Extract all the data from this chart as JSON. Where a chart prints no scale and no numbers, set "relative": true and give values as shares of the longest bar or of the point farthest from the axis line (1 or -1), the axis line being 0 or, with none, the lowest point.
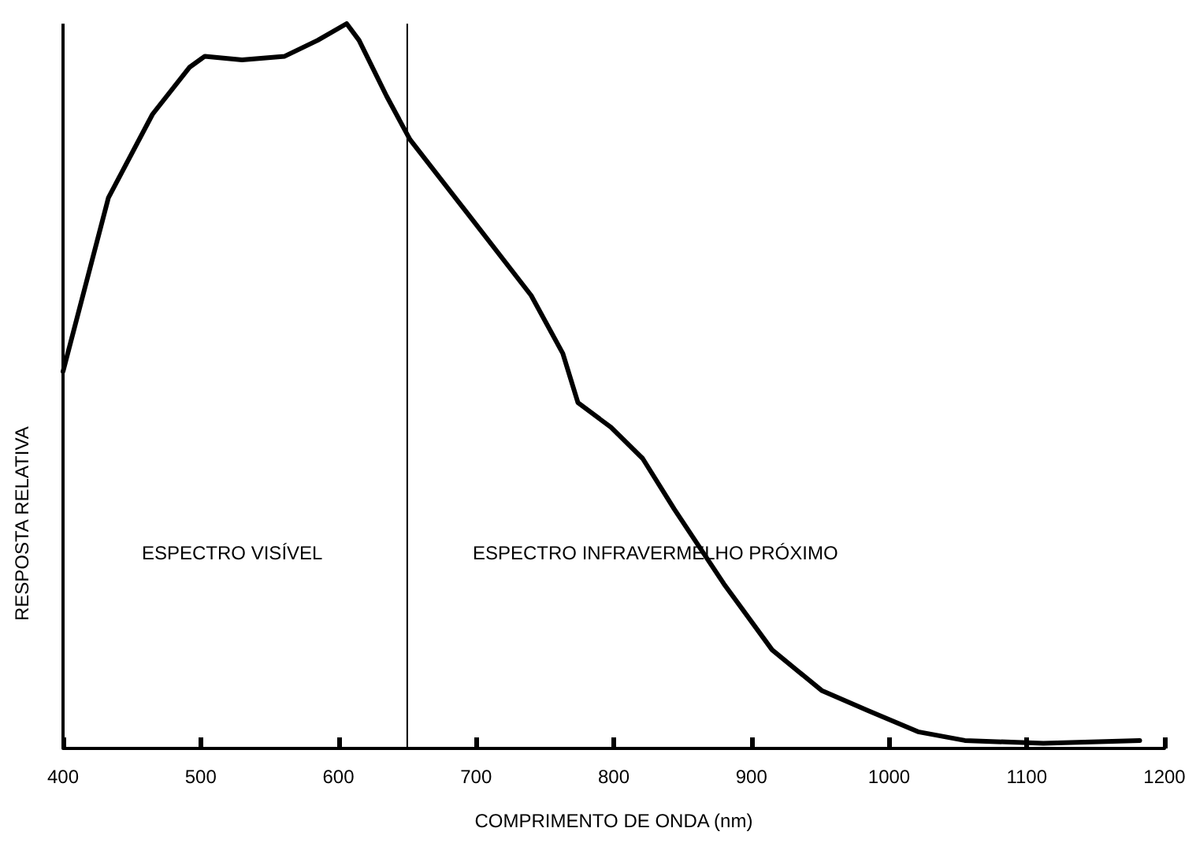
{
  "chart_data": {
    "type": "line",
    "xlabel": "COMPRIMENTO DE ONDA (nm)",
    "ylabel": "RESPOSTA RELATIVA",
    "relative": true,
    "xlim": [
      400,
      1200
    ],
    "xticks": [
      400,
      500,
      600,
      700,
      800,
      900,
      1000,
      1100,
      1200
    ],
    "series": [
      {
        "color": "#000000",
        "x": [
          400,
          433,
          465,
          492,
          503,
          530,
          561,
          585,
          606,
          615,
          635,
          652,
          693,
          740,
          763,
          774,
          798,
          821,
          844,
          880,
          915,
          951,
          985,
          1021,
          1055,
          1112,
          1182
        ],
        "values": [
          0.52,
          0.76,
          0.875,
          0.94,
          0.955,
          0.95,
          0.955,
          0.977,
          1,
          0.977,
          0.9,
          0.84,
          0.74,
          0.625,
          0.545,
          0.477,
          0.443,
          0.4,
          0.33,
          0.227,
          0.136,
          0.08,
          0.052,
          0.023,
          0.011,
          0.007,
          0.011
        ]
      }
    ],
    "ref_lines": [
      {
        "axis": "x",
        "value": 650,
        "color": "#000000",
        "line_style": "solid"
      }
    ],
    "annotations": [
      "ESPECTRO VISÍVEL",
      "ESPECTRO INFRAVERMELHO PRÓXIMO"
    ],
    "grid": false,
    "marker": "none",
    "line_style": "solid"
  }
}
